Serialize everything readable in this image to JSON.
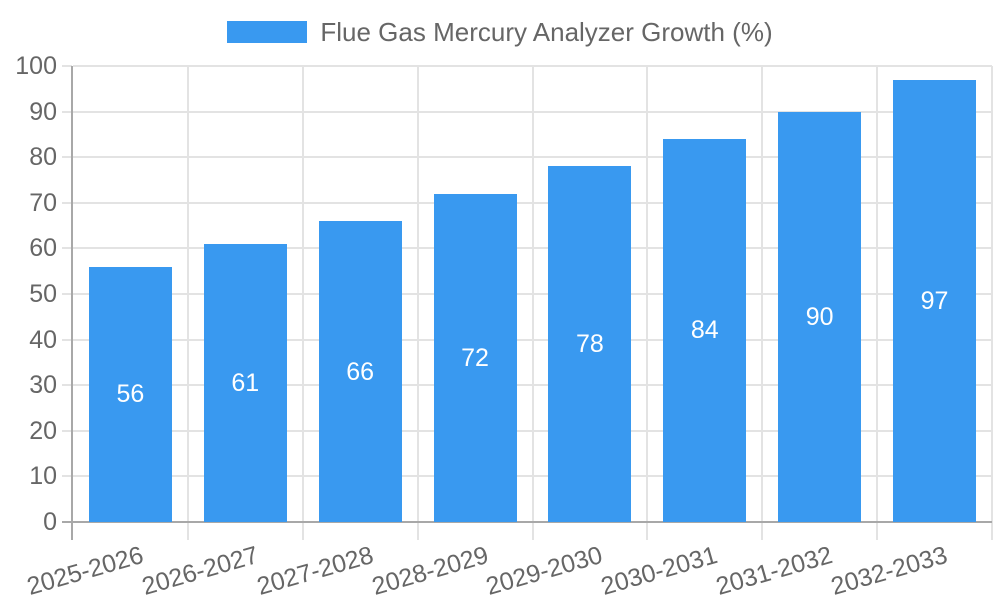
{
  "chart_data": {
    "type": "bar",
    "title": "Flue Gas Mercury Analyzer Growth (%)",
    "legend_position": "top-center",
    "series": [
      {
        "name": "Flue Gas Mercury Analyzer Growth (%)",
        "values": [
          56,
          61,
          66,
          72,
          78,
          84,
          90,
          97
        ]
      }
    ],
    "categories": [
      "2025-2026",
      "2026-2027",
      "2027-2028",
      "2028-2029",
      "2029-2030",
      "2030-2031",
      "2031-2032",
      "2032-2033"
    ],
    "xlabel": "",
    "ylabel": "",
    "ylim": [
      0,
      100
    ],
    "ytick_step": 10,
    "ytick_labels": [
      "0",
      "10",
      "20",
      "30",
      "40",
      "50",
      "60",
      "70",
      "80",
      "90",
      "100"
    ],
    "grid": true,
    "value_labels_shown": true,
    "colors": {
      "bar": "#3999f0",
      "grid": "#e3e3e3",
      "axis": "#a8a8a8",
      "tick_text": "#666666",
      "value_text": "#ffffff",
      "background": "#ffffff"
    }
  }
}
